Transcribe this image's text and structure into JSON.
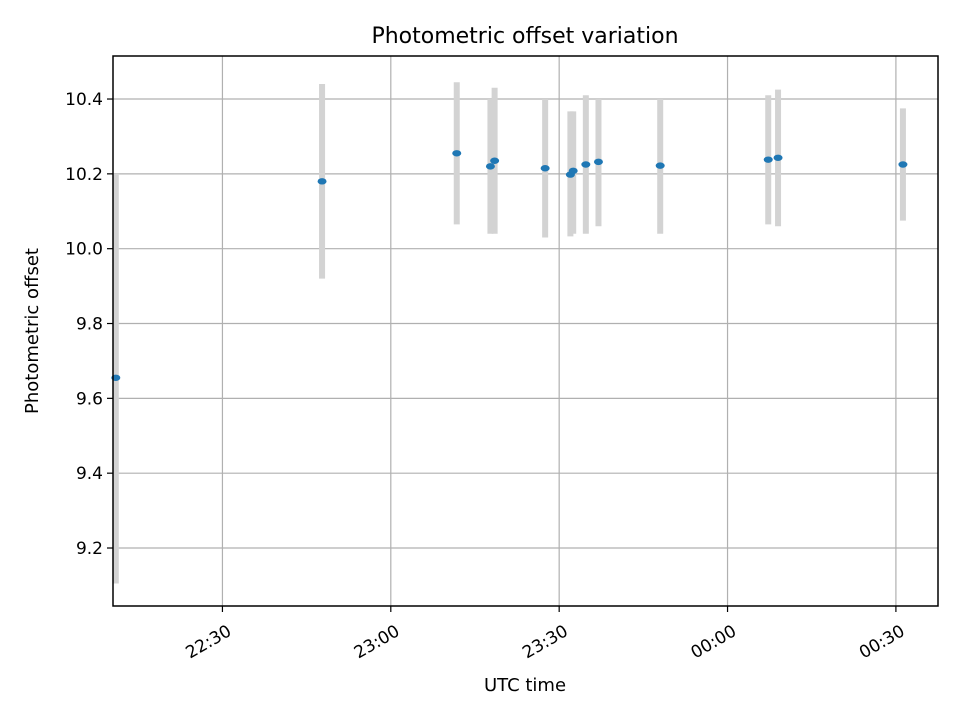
{
  "chart_data": {
    "type": "scatter",
    "title": "Photometric offset variation",
    "xlabel": "UTC time",
    "ylabel": "Photometric offset",
    "x_type": "time",
    "xlim": [
      "22:10:30",
      "00:37:30"
    ],
    "ylim": [
      9.045,
      10.515
    ],
    "x_ticks": [
      "22:30",
      "23:00",
      "23:30",
      "00:00",
      "00:30"
    ],
    "y_ticks": [
      "9.2",
      "9.4",
      "9.6",
      "9.8",
      "10.0",
      "10.2",
      "10.4"
    ],
    "grid": true,
    "marker_color": "#1f77b4",
    "errorbar_color": "#d3d3d3",
    "points": [
      {
        "time": "22:11:00",
        "value": 9.655,
        "low": 9.105,
        "high": 10.2
      },
      {
        "time": "22:47:45",
        "value": 10.18,
        "low": 9.92,
        "high": 10.44
      },
      {
        "time": "23:11:45",
        "value": 10.255,
        "low": 10.065,
        "high": 10.445
      },
      {
        "time": "23:17:45",
        "value": 10.22,
        "low": 10.04,
        "high": 10.4
      },
      {
        "time": "23:18:30",
        "value": 10.235,
        "low": 10.04,
        "high": 10.43
      },
      {
        "time": "23:27:30",
        "value": 10.215,
        "low": 10.03,
        "high": 10.4
      },
      {
        "time": "23:32:00",
        "value": 10.198,
        "low": 10.033,
        "high": 10.367
      },
      {
        "time": "23:32:30",
        "value": 10.208,
        "low": 10.04,
        "high": 10.367
      },
      {
        "time": "23:34:45",
        "value": 10.225,
        "low": 10.04,
        "high": 10.41
      },
      {
        "time": "23:37:00",
        "value": 10.232,
        "low": 10.06,
        "high": 10.4
      },
      {
        "time": "23:48:00",
        "value": 10.222,
        "low": 10.04,
        "high": 10.4
      },
      {
        "time": "00:07:15",
        "value": 10.238,
        "low": 10.065,
        "high": 10.41
      },
      {
        "time": "00:09:00",
        "value": 10.243,
        "low": 10.06,
        "high": 10.425
      },
      {
        "time": "00:31:15",
        "value": 10.225,
        "low": 10.075,
        "high": 10.375
      }
    ]
  }
}
